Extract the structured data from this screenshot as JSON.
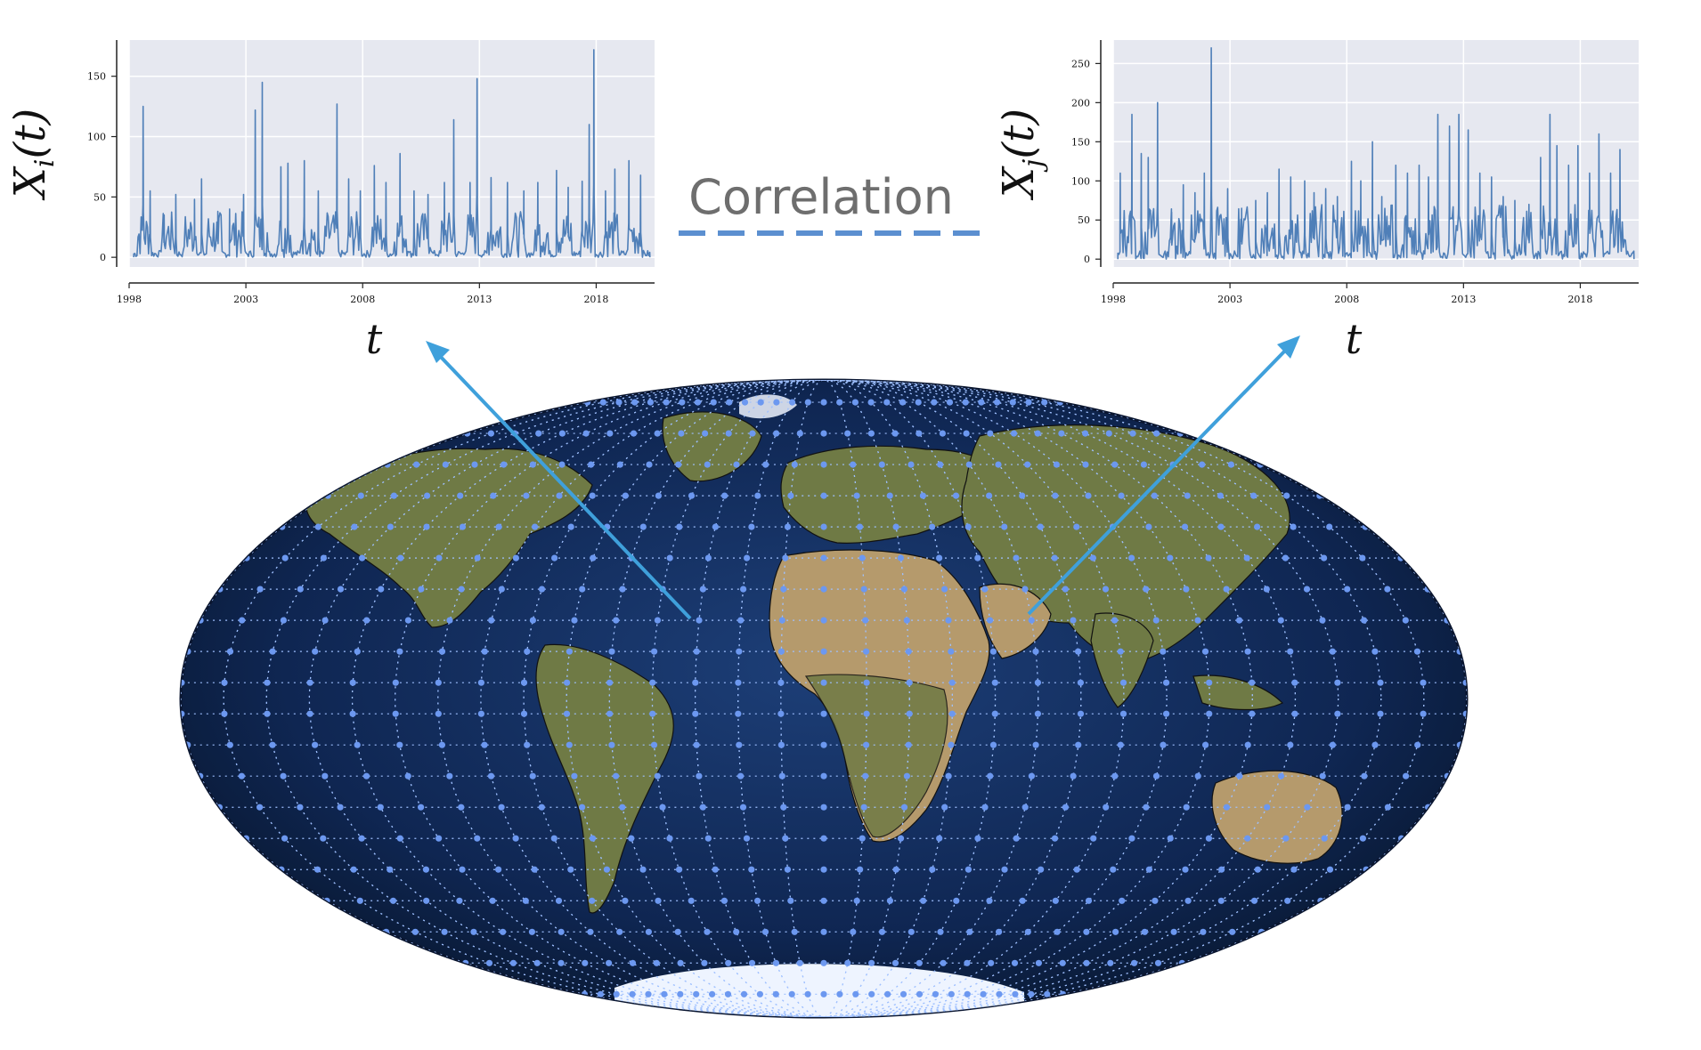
{
  "correlation_label": "Correlation",
  "t_label": "t",
  "colors": {
    "series": "#4f7fb8",
    "arrow": "#3fa0db",
    "dash": "#5b8fd0",
    "ocean": "#0d1f44"
  },
  "chart_data": [
    {
      "type": "line",
      "ylabel_base": "X",
      "ylabel_sub": "i",
      "ylabel_arg": "(t)",
      "xlabel": "t",
      "xlim": [
        1998,
        2020.5
      ],
      "ylim": [
        -8,
        180
      ],
      "xticks": [
        1998,
        2003,
        2008,
        2013,
        2018
      ],
      "yticks": [
        0,
        50,
        100,
        150
      ],
      "grid": true,
      "peaks": [
        [
          1998.6,
          125
        ],
        [
          1998.9,
          55
        ],
        [
          1999.5,
          35
        ],
        [
          2000.0,
          52
        ],
        [
          2000.8,
          48
        ],
        [
          2001.1,
          65
        ],
        [
          2001.8,
          38
        ],
        [
          2002.3,
          40
        ],
        [
          2002.9,
          52
        ],
        [
          2003.4,
          122
        ],
        [
          2003.7,
          145
        ],
        [
          2004.5,
          75
        ],
        [
          2004.8,
          78
        ],
        [
          2005.5,
          80
        ],
        [
          2006.1,
          55
        ],
        [
          2006.9,
          127
        ],
        [
          2007.4,
          65
        ],
        [
          2007.9,
          55
        ],
        [
          2008.5,
          76
        ],
        [
          2009.0,
          62
        ],
        [
          2009.6,
          86
        ],
        [
          2010.2,
          55
        ],
        [
          2010.8,
          52
        ],
        [
          2011.5,
          62
        ],
        [
          2011.9,
          114
        ],
        [
          2012.6,
          62
        ],
        [
          2012.9,
          148
        ],
        [
          2013.5,
          66
        ],
        [
          2014.2,
          62
        ],
        [
          2014.9,
          55
        ],
        [
          2015.5,
          62
        ],
        [
          2016.3,
          72
        ],
        [
          2016.8,
          58
        ],
        [
          2017.4,
          63
        ],
        [
          2017.7,
          110
        ],
        [
          2017.9,
          172
        ],
        [
          2018.4,
          55
        ],
        [
          2018.8,
          73
        ],
        [
          2019.4,
          80
        ],
        [
          2019.9,
          68
        ]
      ]
    },
    {
      "type": "line",
      "ylabel_base": "X",
      "ylabel_sub": "j",
      "ylabel_arg": "(t)",
      "xlabel": "t",
      "xlim": [
        1998,
        2020.5
      ],
      "ylim": [
        -10,
        280
      ],
      "xticks": [
        1998,
        2003,
        2008,
        2013,
        2018
      ],
      "yticks": [
        0,
        50,
        100,
        150,
        200,
        250
      ],
      "grid": true,
      "peaks": [
        [
          1998.3,
          110
        ],
        [
          1998.8,
          185
        ],
        [
          1999.2,
          135
        ],
        [
          1999.5,
          130
        ],
        [
          1999.9,
          200
        ],
        [
          2000.5,
          60
        ],
        [
          2001.0,
          95
        ],
        [
          2001.5,
          85
        ],
        [
          2001.9,
          110
        ],
        [
          2002.2,
          270
        ],
        [
          2002.9,
          90
        ],
        [
          2003.5,
          65
        ],
        [
          2004.1,
          75
        ],
        [
          2004.6,
          85
        ],
        [
          2005.1,
          115
        ],
        [
          2005.6,
          105
        ],
        [
          2006.2,
          100
        ],
        [
          2006.6,
          85
        ],
        [
          2007.1,
          90
        ],
        [
          2007.6,
          80
        ],
        [
          2008.2,
          125
        ],
        [
          2008.6,
          100
        ],
        [
          2009.1,
          150
        ],
        [
          2009.5,
          80
        ],
        [
          2010.1,
          120
        ],
        [
          2010.6,
          110
        ],
        [
          2011.1,
          120
        ],
        [
          2011.5,
          105
        ],
        [
          2011.9,
          185
        ],
        [
          2012.4,
          170
        ],
        [
          2012.8,
          185
        ],
        [
          2013.2,
          165
        ],
        [
          2013.7,
          110
        ],
        [
          2014.2,
          105
        ],
        [
          2014.7,
          80
        ],
        [
          2015.2,
          75
        ],
        [
          2015.8,
          70
        ],
        [
          2016.3,
          130
        ],
        [
          2016.7,
          185
        ],
        [
          2017.0,
          145
        ],
        [
          2017.5,
          120
        ],
        [
          2017.9,
          145
        ],
        [
          2018.4,
          110
        ],
        [
          2018.8,
          160
        ],
        [
          2019.3,
          110
        ],
        [
          2019.7,
          140
        ]
      ]
    }
  ]
}
